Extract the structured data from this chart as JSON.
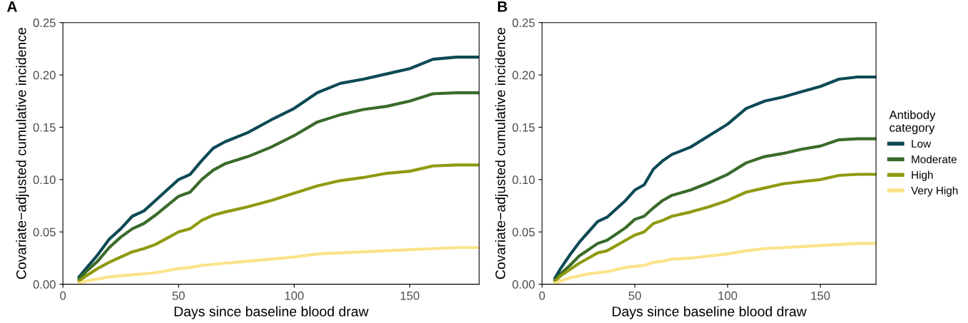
{
  "chart_data": [
    {
      "type": "line",
      "title": "A",
      "xlabel": "Days since baseline blood draw",
      "ylabel": "Covariate−adjusted cumulative incidence",
      "x": [
        7,
        10,
        15,
        20,
        25,
        30,
        35,
        40,
        45,
        50,
        55,
        60,
        65,
        70,
        80,
        90,
        100,
        110,
        120,
        130,
        140,
        150,
        160,
        170,
        180
      ],
      "xlim": [
        0,
        180
      ],
      "ylim": [
        0,
        0.25
      ],
      "xticks": [
        0,
        50,
        100,
        150
      ],
      "yticks": [
        {
          "value": 0,
          "label": "0.00"
        },
        {
          "value": 0.05,
          "label": "0.05"
        },
        {
          "value": 0.1,
          "label": "0.10"
        },
        {
          "value": 0.15,
          "label": "0.15"
        },
        {
          "value": 0.2,
          "label": "0.20"
        },
        {
          "value": 0.25,
          "label": "0.25"
        }
      ],
      "grid": false,
      "legend": false,
      "series": [
        {
          "color": "#0d4a55",
          "values": [
            0.007,
            0.015,
            0.028,
            0.043,
            0.053,
            0.065,
            0.07,
            0.08,
            0.09,
            0.1,
            0.105,
            0.118,
            0.13,
            0.136,
            0.145,
            0.157,
            0.168,
            0.183,
            0.192,
            0.196,
            0.201,
            0.206,
            0.215,
            0.217,
            0.217
          ]
        },
        {
          "color": "#3a6b2a",
          "values": [
            0.005,
            0.012,
            0.022,
            0.035,
            0.045,
            0.053,
            0.058,
            0.066,
            0.075,
            0.084,
            0.088,
            0.1,
            0.109,
            0.115,
            0.122,
            0.131,
            0.142,
            0.155,
            0.162,
            0.167,
            0.17,
            0.175,
            0.182,
            0.183,
            0.183
          ]
        },
        {
          "color": "#8f9a10",
          "values": [
            0.003,
            0.008,
            0.015,
            0.021,
            0.026,
            0.031,
            0.034,
            0.038,
            0.044,
            0.05,
            0.053,
            0.061,
            0.066,
            0.069,
            0.074,
            0.08,
            0.087,
            0.094,
            0.099,
            0.102,
            0.106,
            0.108,
            0.113,
            0.114,
            0.114
          ]
        },
        {
          "color": "#fce38a",
          "values": [
            0.001,
            0.003,
            0.005,
            0.007,
            0.008,
            0.009,
            0.01,
            0.011,
            0.013,
            0.015,
            0.016,
            0.018,
            0.019,
            0.02,
            0.022,
            0.024,
            0.026,
            0.029,
            0.03,
            0.031,
            0.032,
            0.033,
            0.034,
            0.035,
            0.035
          ]
        }
      ]
    },
    {
      "type": "line",
      "title": "B",
      "xlabel": "Days since baseline blood draw",
      "ylabel": "Covariate−adjusted cumulative incidence",
      "legend_title": "Antibody\ncategory",
      "x": [
        7,
        10,
        15,
        20,
        25,
        30,
        35,
        40,
        45,
        50,
        55,
        60,
        65,
        70,
        80,
        90,
        100,
        110,
        120,
        130,
        140,
        150,
        160,
        170,
        180
      ],
      "xlim": [
        0,
        180
      ],
      "ylim": [
        0,
        0.25
      ],
      "xticks": [
        0,
        50,
        100,
        150
      ],
      "yticks": [
        {
          "value": 0,
          "label": "0.00"
        },
        {
          "value": 0.05,
          "label": "0.05"
        },
        {
          "value": 0.1,
          "label": "0.10"
        },
        {
          "value": 0.15,
          "label": "0.15"
        },
        {
          "value": 0.2,
          "label": "0.20"
        },
        {
          "value": 0.25,
          "label": "0.25"
        }
      ],
      "grid": false,
      "legend": "right",
      "series": [
        {
          "name": "Low",
          "color": "#0d4a55",
          "values": [
            0.006,
            0.015,
            0.028,
            0.04,
            0.05,
            0.06,
            0.064,
            0.072,
            0.08,
            0.09,
            0.095,
            0.11,
            0.118,
            0.124,
            0.131,
            0.142,
            0.153,
            0.168,
            0.175,
            0.179,
            0.184,
            0.189,
            0.196,
            0.198,
            0.198
          ]
        },
        {
          "name": "Moderate",
          "color": "#3a6b2a",
          "values": [
            0.004,
            0.01,
            0.018,
            0.027,
            0.033,
            0.039,
            0.042,
            0.048,
            0.054,
            0.062,
            0.065,
            0.073,
            0.08,
            0.085,
            0.09,
            0.097,
            0.105,
            0.116,
            0.122,
            0.125,
            0.129,
            0.132,
            0.138,
            0.139,
            0.139
          ]
        },
        {
          "name": "High",
          "color": "#8f9a10",
          "values": [
            0.003,
            0.008,
            0.014,
            0.02,
            0.025,
            0.03,
            0.032,
            0.037,
            0.042,
            0.047,
            0.05,
            0.058,
            0.061,
            0.065,
            0.069,
            0.074,
            0.08,
            0.088,
            0.092,
            0.096,
            0.098,
            0.1,
            0.104,
            0.105,
            0.105
          ]
        },
        {
          "name": "Very High",
          "color": "#fce38a",
          "values": [
            0.001,
            0.003,
            0.006,
            0.008,
            0.01,
            0.011,
            0.012,
            0.014,
            0.016,
            0.017,
            0.018,
            0.021,
            0.022,
            0.024,
            0.025,
            0.027,
            0.029,
            0.032,
            0.034,
            0.035,
            0.036,
            0.037,
            0.038,
            0.039,
            0.039
          ]
        }
      ]
    }
  ]
}
